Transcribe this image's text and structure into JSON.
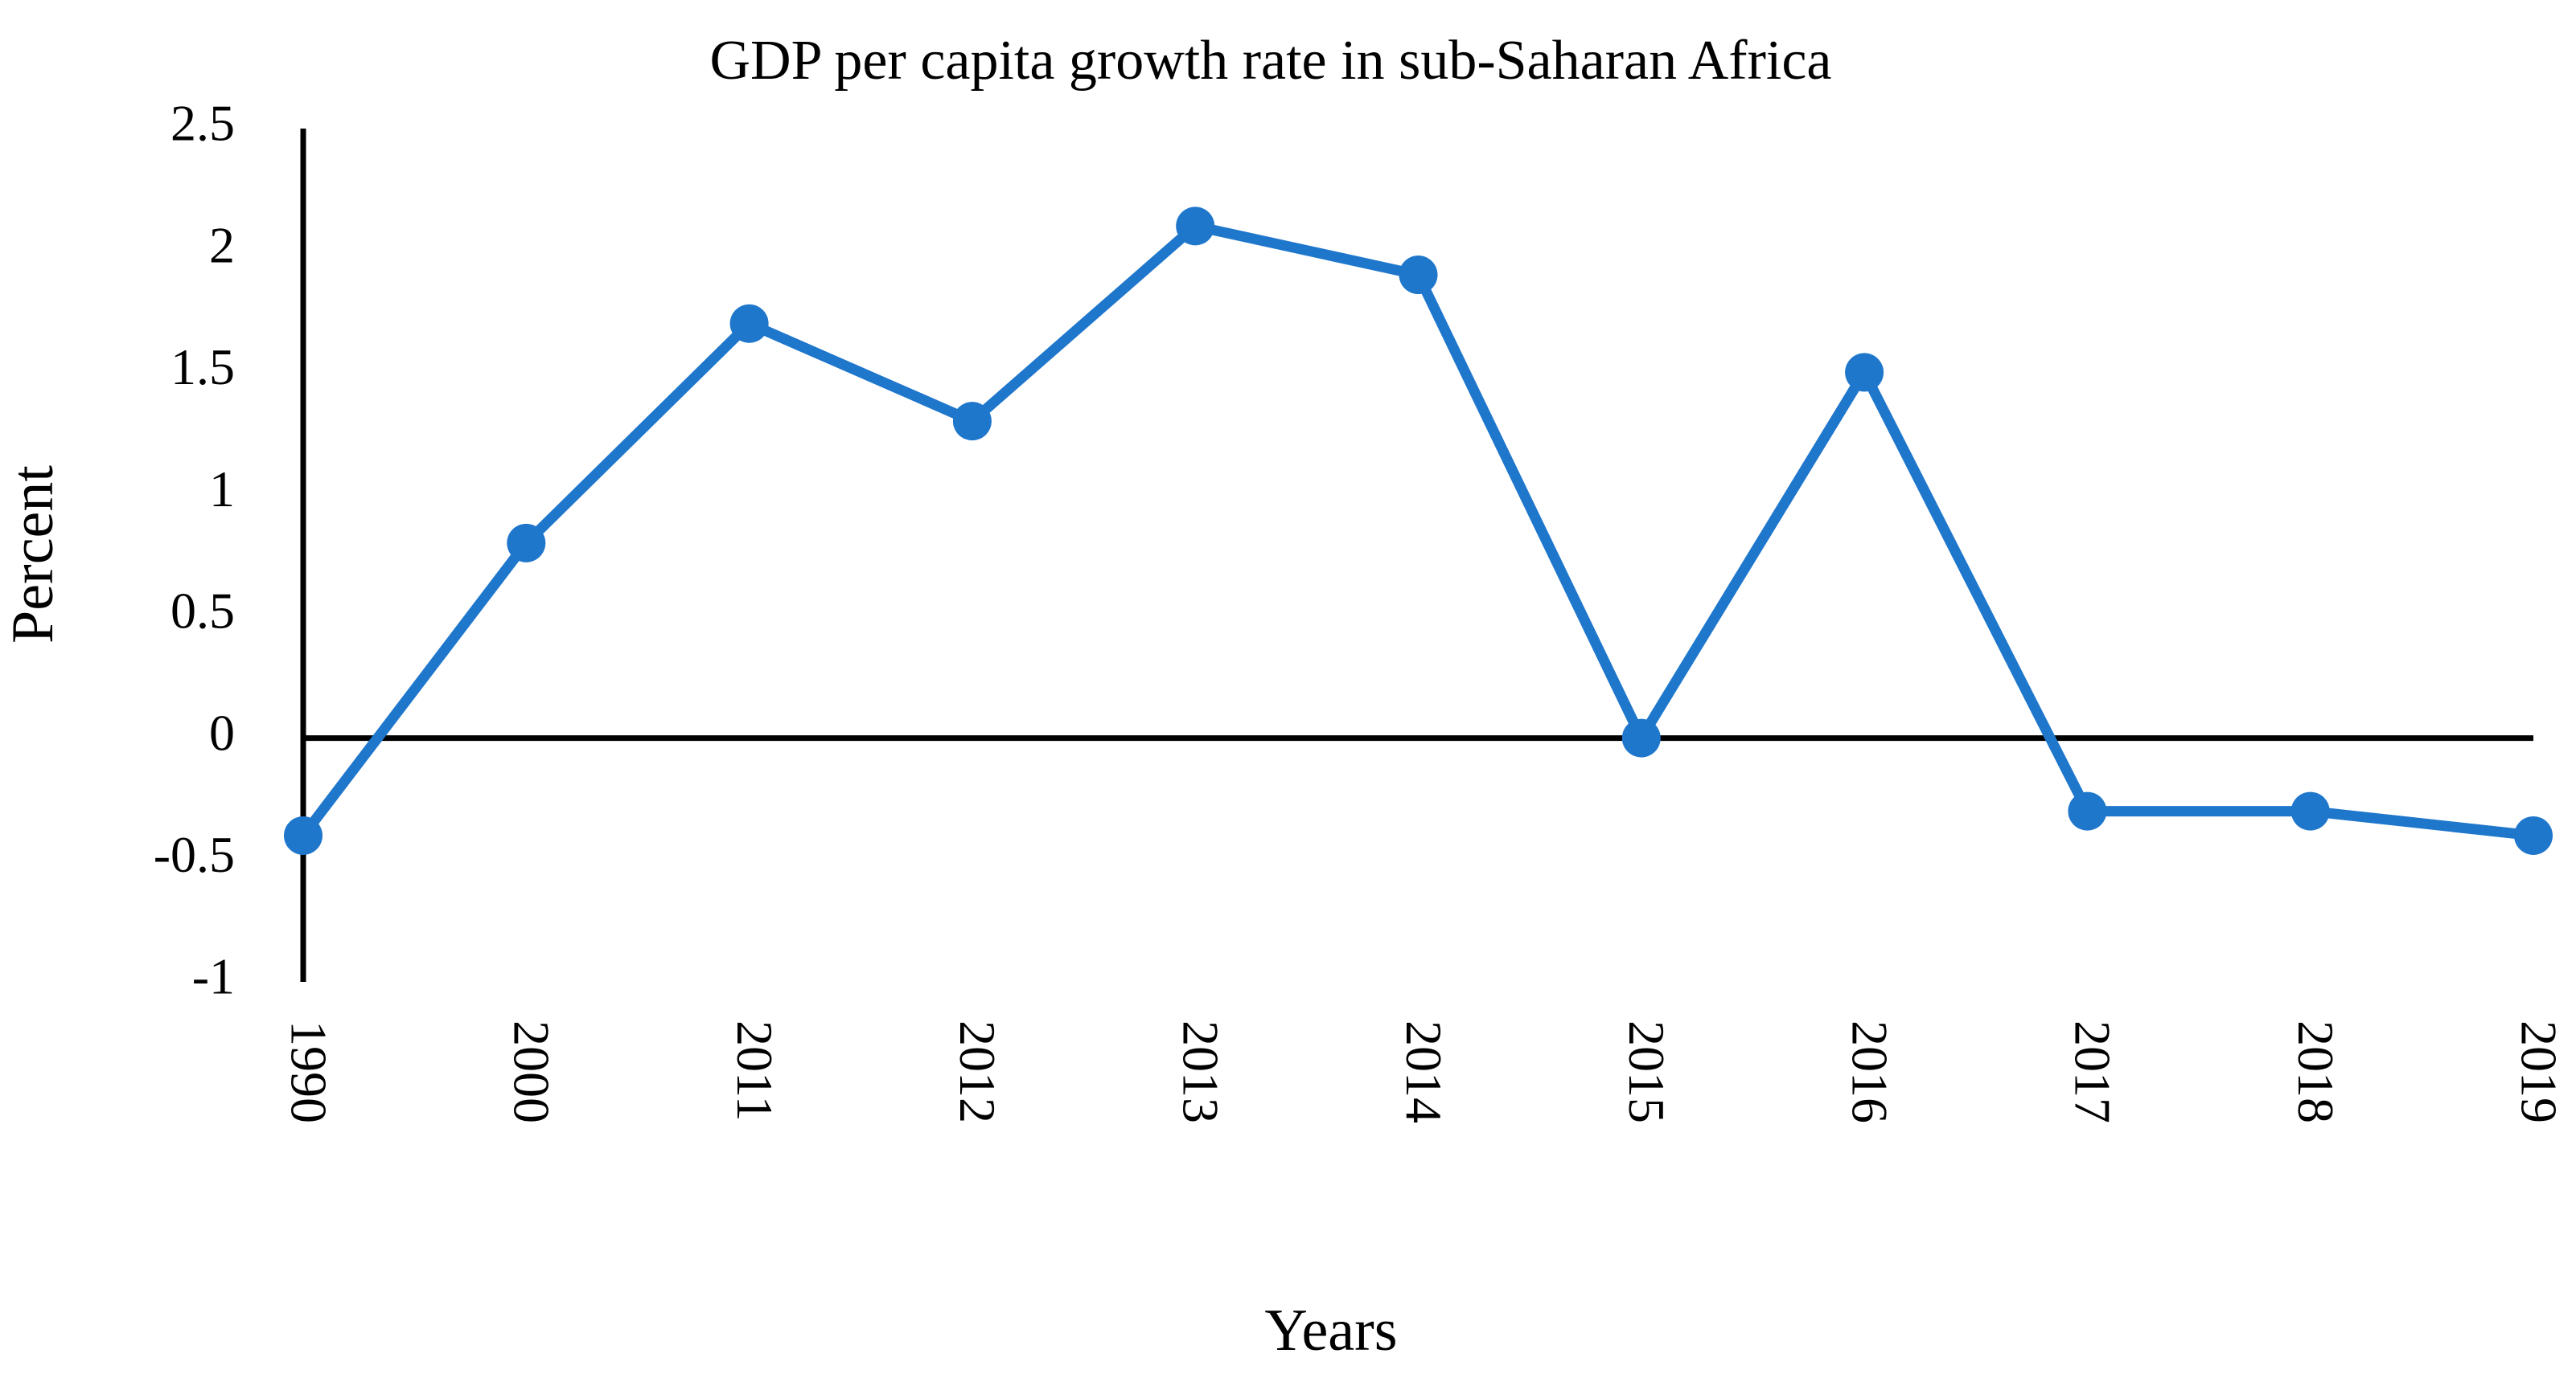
{
  "chart_data": {
    "type": "line",
    "title": "GDP per capita growth rate  in sub-Saharan Africa",
    "xlabel": "Years",
    "ylabel": "Percent",
    "categories": [
      "1990",
      "2000",
      "2011",
      "2012",
      "2013",
      "2014",
      "2015",
      "2016",
      "2017",
      "2018",
      "2019"
    ],
    "series": [
      {
        "values": [
          -0.4,
          0.8,
          1.7,
          1.3,
          2.1,
          1.9,
          0.0,
          1.5,
          -0.3,
          -0.3,
          -0.4
        ]
      }
    ],
    "ylim": [
      -1,
      2.5
    ],
    "yticks": [
      2.5,
      2,
      1.5,
      1,
      0.5,
      0,
      -0.5,
      -1
    ],
    "ytick_labels": [
      "2.5",
      "2",
      "1.5",
      "1",
      "0.5",
      "0",
      "-0.5",
      "-1"
    ],
    "grid": false,
    "legend": "none",
    "colors": {
      "series": "#1f77cc",
      "axis": "#000000"
    }
  }
}
